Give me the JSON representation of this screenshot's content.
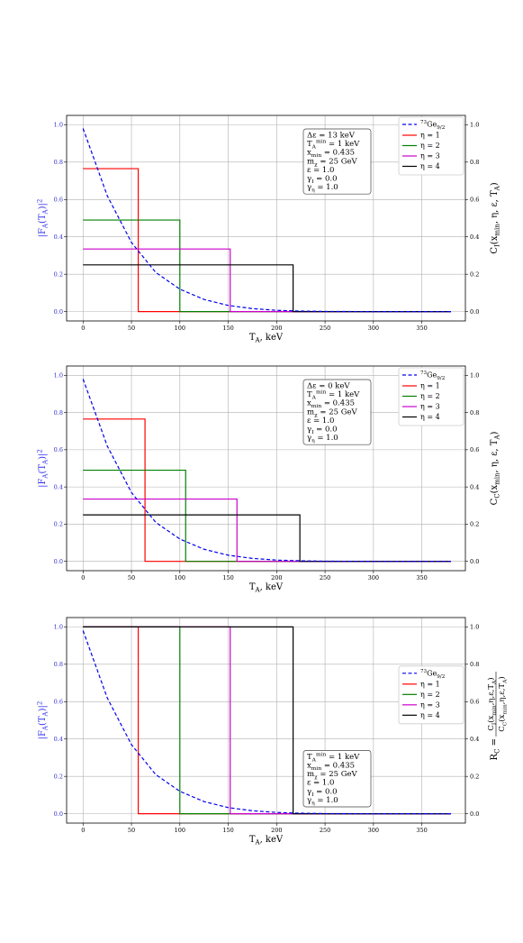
{
  "colors": {
    "form_factor": "#0000ee",
    "eta1": "#ff0000",
    "eta2": "#008000",
    "eta3": "#cc00cc",
    "eta4": "#000000",
    "grid": "#b0b0b0"
  },
  "chart_data": [
    {
      "type": "line",
      "id": "top",
      "xlabel": "T_A, keV",
      "ylabel_left": "|F_A(T_A)|^2",
      "ylabel_right": "C_I(x_min, η, ε, T_A)",
      "xlim": [
        -17,
        395
      ],
      "ylim": [
        -0.05,
        1.05
      ],
      "xticks": [
        0,
        50,
        100,
        150,
        200,
        250,
        300,
        350
      ],
      "yticks": [
        0.0,
        0.2,
        0.4,
        0.6,
        0.8,
        1.0
      ],
      "grid": true,
      "legend_position": "top-right",
      "legend": [
        "73Ge9/2",
        "η = 1",
        "η = 2",
        "η = 3",
        "η = 4"
      ],
      "form_factor": {
        "name": "73Ge9/2",
        "x": [
          0,
          25,
          50,
          75,
          100,
          125,
          150,
          175,
          200,
          225,
          250,
          300,
          350,
          380
        ],
        "y": [
          0.98,
          0.62,
          0.37,
          0.21,
          0.12,
          0.065,
          0.033,
          0.016,
          0.007,
          0.003,
          0.001,
          0.0,
          0.0,
          0.0
        ]
      },
      "series": [
        {
          "name": "η = 1",
          "level": 0.765,
          "cutoff": 57,
          "x_end": 380
        },
        {
          "name": "η = 2",
          "level": 0.49,
          "cutoff": 100,
          "x_end": 380
        },
        {
          "name": "η = 3",
          "level": 0.335,
          "cutoff": 152,
          "x_end": 380
        },
        {
          "name": "η = 4",
          "level": 0.25,
          "cutoff": 217,
          "x_end": 380
        }
      ],
      "info_position": "upper-middle-right",
      "info": [
        "Δε = 13 keV",
        "T_A^min = 1 keV",
        "x_min = 0.435",
        "m_χ = 25 GeV",
        "ε = 1.0",
        "γ_I = 0.0",
        "γ_η = 1.0"
      ]
    },
    {
      "type": "line",
      "id": "middle",
      "xlabel": "T_A, keV",
      "ylabel_left": "|F_A(T_A)|^2",
      "ylabel_right": "C_C(x_min, η, ε, T_A)",
      "xlim": [
        -17,
        395
      ],
      "ylim": [
        -0.05,
        1.05
      ],
      "xticks": [
        0,
        50,
        100,
        150,
        200,
        250,
        300,
        350
      ],
      "yticks": [
        0.0,
        0.2,
        0.4,
        0.6,
        0.8,
        1.0
      ],
      "grid": true,
      "legend_position": "top-right",
      "legend": [
        "73Ge9/2",
        "η = 1",
        "η = 2",
        "η = 3",
        "η = 4"
      ],
      "form_factor": {
        "name": "73Ge9/2",
        "x": [
          0,
          25,
          50,
          75,
          100,
          125,
          150,
          175,
          200,
          225,
          250,
          300,
          350,
          380
        ],
        "y": [
          0.98,
          0.62,
          0.37,
          0.21,
          0.12,
          0.065,
          0.033,
          0.016,
          0.007,
          0.003,
          0.001,
          0.0,
          0.0,
          0.0
        ]
      },
      "series": [
        {
          "name": "η = 1",
          "level": 0.765,
          "cutoff": 64,
          "x_end": 380
        },
        {
          "name": "η = 2",
          "level": 0.49,
          "cutoff": 106,
          "x_end": 380
        },
        {
          "name": "η = 3",
          "level": 0.335,
          "cutoff": 159,
          "x_end": 380
        },
        {
          "name": "η = 4",
          "level": 0.25,
          "cutoff": 224,
          "x_end": 380
        }
      ],
      "info_position": "upper-middle-right",
      "info": [
        "Δε =  0 keV",
        "T_A^min = 1 keV",
        "x_min = 0.435",
        "m_χ = 25 GeV",
        "ε = 1.0",
        "γ_I = 0.0",
        "γ_η = 1.0"
      ]
    },
    {
      "type": "line",
      "id": "bottom",
      "xlabel": "T_A, keV",
      "ylabel_left": "|F_A(T_A)|^2",
      "ylabel_right": "R_C = C_I(x_min,η,ε,T_A) / C_C(x_min,η,ε,T_A)",
      "xlim": [
        -17,
        395
      ],
      "ylim": [
        -0.05,
        1.05
      ],
      "xticks": [
        0,
        50,
        100,
        150,
        200,
        250,
        300,
        350
      ],
      "yticks": [
        0.0,
        0.2,
        0.4,
        0.6,
        0.8,
        1.0
      ],
      "grid": true,
      "legend_position": "center-right",
      "legend": [
        "73Ge9/2",
        "η = 1",
        "η = 2",
        "η = 3",
        "η = 4"
      ],
      "form_factor": {
        "name": "73Ge9/2",
        "x": [
          0,
          25,
          50,
          75,
          100,
          125,
          150,
          175,
          200,
          225,
          250,
          300,
          350,
          380
        ],
        "y": [
          0.98,
          0.62,
          0.37,
          0.21,
          0.12,
          0.065,
          0.033,
          0.016,
          0.007,
          0.003,
          0.001,
          0.0,
          0.0,
          0.0
        ]
      },
      "series": [
        {
          "name": "η = 1",
          "level": 1.0,
          "cutoff": 57,
          "x_end": 380
        },
        {
          "name": "η = 2",
          "level": 1.0,
          "cutoff": 100,
          "x_end": 380
        },
        {
          "name": "η = 3",
          "level": 1.0,
          "cutoff": 152,
          "x_end": 380
        },
        {
          "name": "η = 4",
          "level": 1.0,
          "cutoff": 217,
          "x_end": 380
        }
      ],
      "info_position": "lower-middle-right",
      "info": [
        "T_A^min = 1 keV",
        "x_min = 0.435",
        "m_χ = 25 GeV",
        "ε = 1.0",
        "γ_I = 0.0",
        "γ_η = 1.0"
      ]
    }
  ]
}
